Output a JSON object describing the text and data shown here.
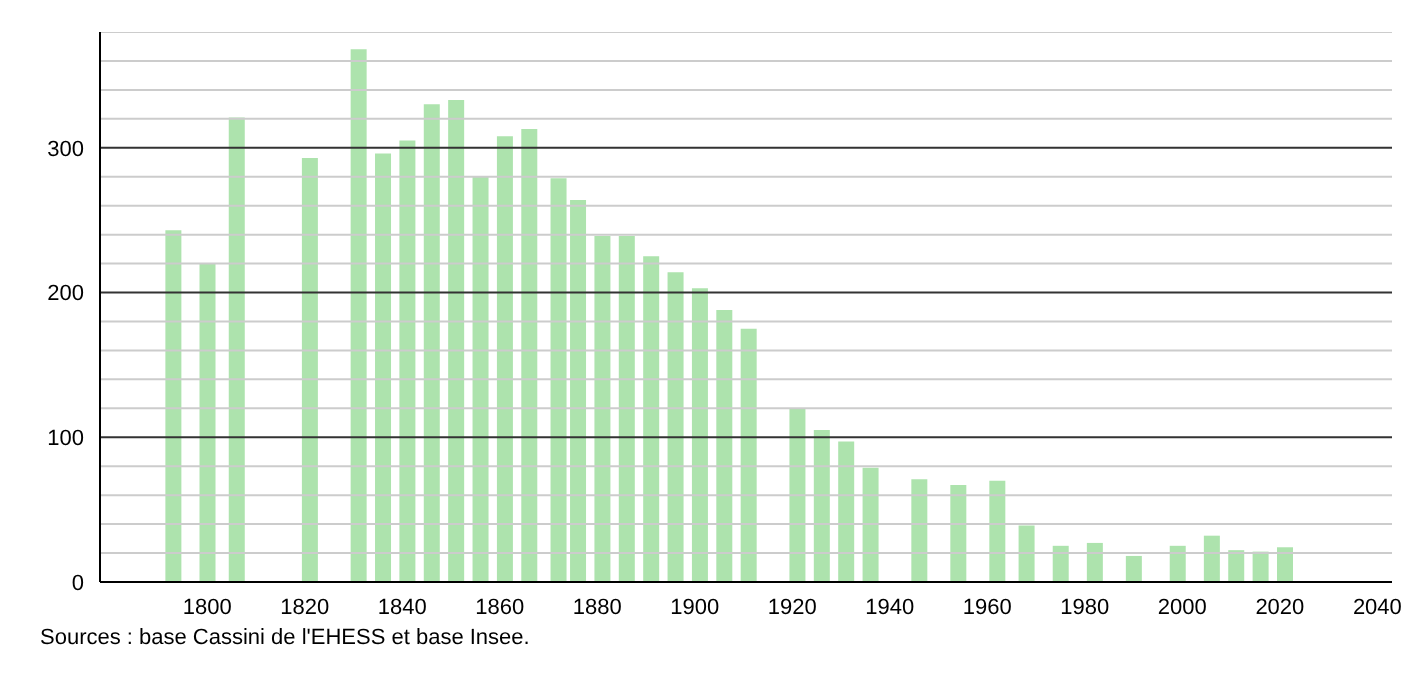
{
  "chart_data": {
    "type": "bar",
    "x": [
      1793,
      1800,
      1806,
      1821,
      1831,
      1836,
      1841,
      1846,
      1851,
      1856,
      1861,
      1866,
      1872,
      1876,
      1881,
      1886,
      1891,
      1896,
      1901,
      1906,
      1911,
      1921,
      1926,
      1931,
      1936,
      1946,
      1954,
      1962,
      1968,
      1975,
      1982,
      1990,
      1999,
      2006,
      2011,
      2016,
      2021
    ],
    "values": [
      243,
      220,
      321,
      293,
      368,
      296,
      305,
      330,
      333,
      280,
      308,
      313,
      279,
      264,
      239,
      239,
      225,
      214,
      203,
      188,
      175,
      120,
      105,
      97,
      79,
      71,
      67,
      70,
      39,
      25,
      27,
      18,
      25,
      32,
      22,
      21,
      24
    ],
    "color": "#ade3ad",
    "xlim": [
      1778,
      2043
    ],
    "xticks": [
      1800,
      1820,
      1840,
      1860,
      1880,
      1900,
      1920,
      1940,
      1960,
      1980,
      2000,
      2020,
      2040
    ],
    "ylim": [
      0,
      380
    ],
    "yticks": [
      0,
      {
        "value": 20,
        "label": null
      },
      {
        "value": 40,
        "label": null
      },
      {
        "value": 60,
        "label": null
      },
      {
        "value": 80,
        "label": null
      },
      100,
      {
        "value": 120,
        "label": null
      },
      {
        "value": 140,
        "label": null
      },
      {
        "value": 160,
        "label": null
      },
      {
        "value": 180,
        "label": null
      },
      200,
      {
        "value": 220,
        "label": null
      },
      {
        "value": 240,
        "label": null
      },
      {
        "value": 260,
        "label": null
      },
      {
        "value": 280,
        "label": null
      },
      300,
      {
        "value": 320,
        "label": null
      },
      {
        "value": 340,
        "label": null
      },
      {
        "value": 360,
        "label": null
      },
      {
        "value": 380,
        "label": null
      }
    ],
    "grid": "y",
    "annotations": [
      "Sources : base Cassini de l'EHESS et base Insee."
    ]
  }
}
